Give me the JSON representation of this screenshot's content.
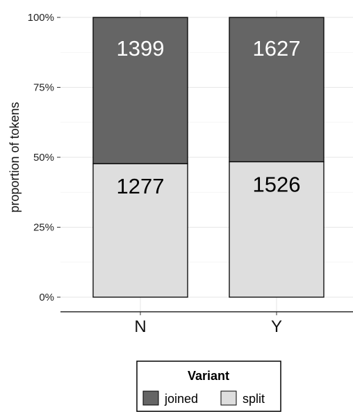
{
  "chart_data": {
    "type": "bar",
    "stacked": true,
    "normalized": true,
    "categories": [
      "N",
      "Y"
    ],
    "series": [
      {
        "name": "split",
        "values": [
          1277,
          1526
        ],
        "color": "#dedede"
      },
      {
        "name": "joined",
        "values": [
          1399,
          1627
        ],
        "color": "#656565"
      }
    ],
    "ylabel": "proportion of tokens",
    "xlabel": "",
    "y_ticks": [
      "0%",
      "25%",
      "50%",
      "75%",
      "100%"
    ],
    "ylim": [
      0,
      1
    ],
    "grid": true,
    "legend": {
      "title": "Variant",
      "position": "bottom",
      "entries": [
        {
          "label": "joined",
          "color": "#656565"
        },
        {
          "label": "split",
          "color": "#dedede"
        }
      ]
    },
    "label_colors": {
      "on_dark": "#ffffff",
      "on_light": "#000000"
    }
  }
}
